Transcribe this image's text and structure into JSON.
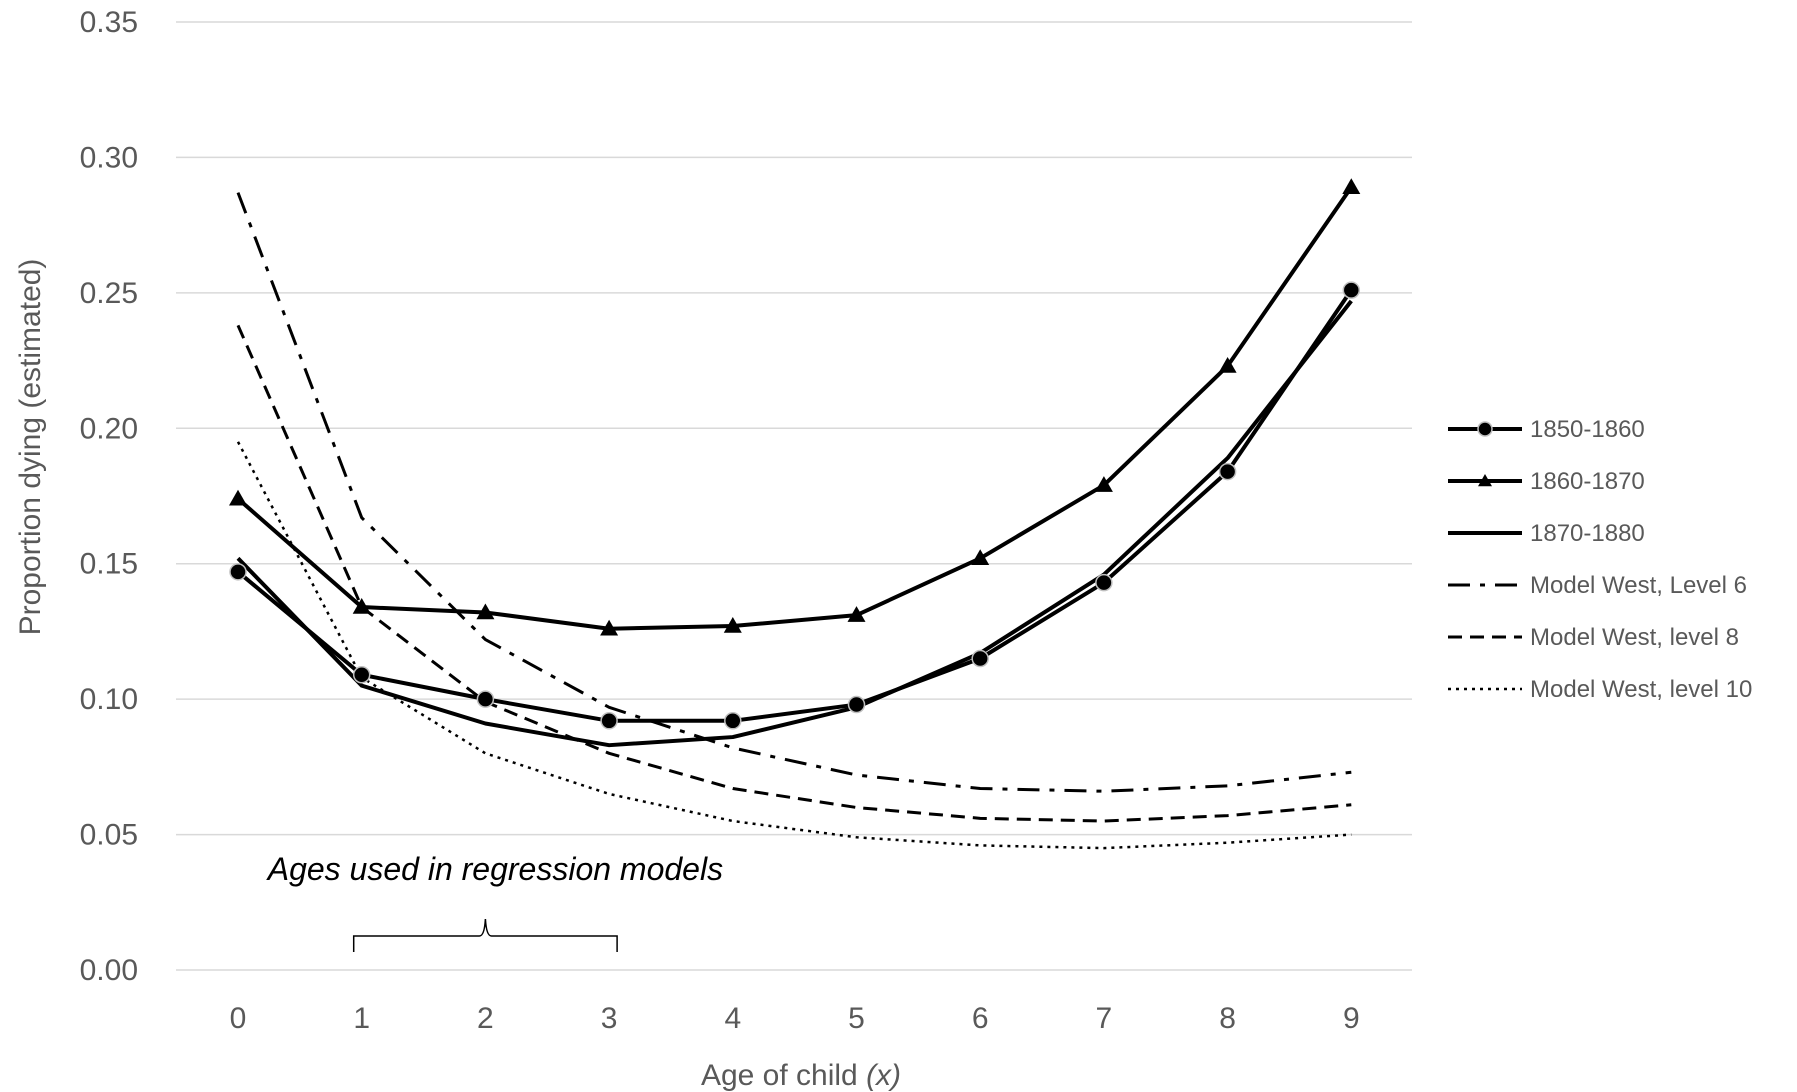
{
  "chart_data": {
    "type": "line",
    "x": [
      0,
      1,
      2,
      3,
      4,
      5,
      6,
      7,
      8,
      9
    ],
    "xlabel": "Age of child",
    "xlabel_var": "(x)",
    "ylabel": "Proportion dying (estimated)",
    "ylim": [
      0,
      0.35
    ],
    "yticks": [
      "0.00",
      "0.05",
      "0.10",
      "0.15",
      "0.20",
      "0.25",
      "0.30",
      "0.35"
    ],
    "grid": "horizontal",
    "legend_position": "right",
    "annotation": {
      "text": "Ages used in regression models",
      "brace_from": 1,
      "brace_to": 3
    },
    "series": [
      {
        "name": "1850-1860",
        "style": "solid",
        "marker": "circle",
        "values": [
          0.147,
          0.109,
          0.1,
          0.092,
          0.092,
          0.098,
          0.115,
          0.143,
          0.184,
          0.251
        ]
      },
      {
        "name": "1860-1870",
        "style": "solid",
        "marker": "triangle",
        "values": [
          0.174,
          0.134,
          0.132,
          0.126,
          0.127,
          0.131,
          0.152,
          0.179,
          0.223,
          0.289
        ]
      },
      {
        "name": "1870-1880",
        "style": "solid",
        "marker": "none",
        "values": [
          0.152,
          0.105,
          0.091,
          0.083,
          0.086,
          0.097,
          0.117,
          0.146,
          0.189,
          0.247
        ]
      },
      {
        "name": "Model West, Level 6",
        "style": "dashdot",
        "marker": "none",
        "values": [
          0.287,
          0.167,
          0.122,
          0.097,
          0.082,
          0.072,
          0.067,
          0.066,
          0.068,
          0.073
        ]
      },
      {
        "name": "Model West, level 8",
        "style": "dashed",
        "marker": "none",
        "values": [
          0.238,
          0.134,
          0.099,
          0.08,
          0.067,
          0.06,
          0.056,
          0.055,
          0.057,
          0.061
        ]
      },
      {
        "name": "Model West, level 10",
        "style": "dotted",
        "marker": "none",
        "values": [
          0.195,
          0.108,
          0.08,
          0.065,
          0.055,
          0.049,
          0.046,
          0.045,
          0.047,
          0.05
        ]
      }
    ]
  }
}
